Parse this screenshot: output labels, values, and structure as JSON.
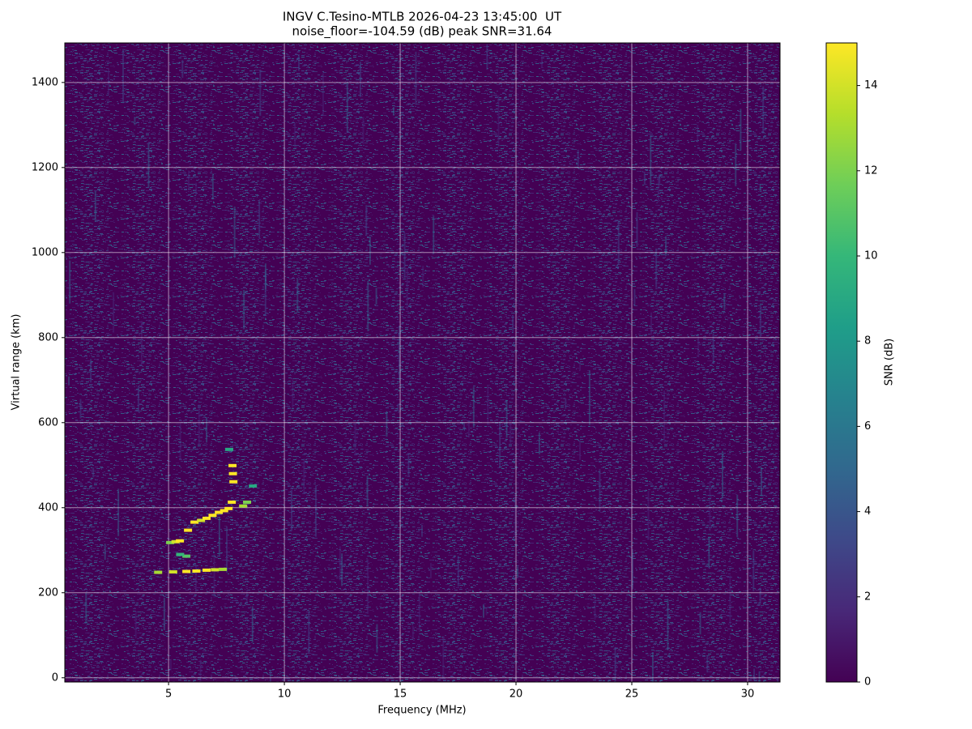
{
  "chart_data": {
    "type": "ionogram",
    "title": "INGV C.Tesino-MTLB 2026-04-23 13:45:00  UT",
    "subtitle": "noise_floor=-104.59 (dB) peak SNR=31.64",
    "x_label": "Frequency (MHz)",
    "y_label": "Virtual range (km)",
    "xlim": [
      0.52,
      31.4
    ],
    "ylim": [
      -10,
      1493
    ],
    "xticks": [
      5,
      10,
      15,
      20,
      25,
      30
    ],
    "yticks": [
      0,
      200,
      400,
      600,
      800,
      1000,
      1200,
      1400
    ],
    "grid": true,
    "background_color": "#440154",
    "x": [
      4.55,
      5.2,
      5.77,
      6.2,
      6.64,
      7.0,
      7.34,
      5.07,
      5.3,
      5.49,
      5.84,
      6.12,
      6.4,
      6.64,
      6.9,
      7.17,
      7.4,
      7.59,
      7.73,
      7.8,
      7.78,
      7.76,
      7.62,
      8.22,
      8.39,
      8.64,
      5.77,
      5.5
    ],
    "y": [
      248,
      249,
      250,
      251,
      253,
      254,
      255,
      318,
      320,
      322,
      347,
      366,
      370,
      375,
      382,
      389,
      393,
      398,
      413,
      461,
      480,
      499,
      537,
      404,
      413,
      451,
      286,
      290
    ],
    "values": [
      13,
      14,
      15,
      15,
      15,
      14,
      13,
      12,
      14,
      15,
      15,
      15,
      14,
      15,
      15,
      15,
      15,
      15,
      15,
      15,
      15,
      15,
      9,
      13,
      12,
      9,
      11,
      10
    ],
    "colorbar": {
      "label": "SNR (dB)",
      "lim": [
        0,
        15
      ],
      "ticks": [
        0,
        2,
        4,
        6,
        8,
        10,
        12,
        14
      ],
      "colors": [
        "#440154",
        "#482878",
        "#3e4989",
        "#31688e",
        "#26828e",
        "#1f9e89",
        "#35b779",
        "#6ece58",
        "#b5de2b",
        "#fde725"
      ]
    }
  }
}
